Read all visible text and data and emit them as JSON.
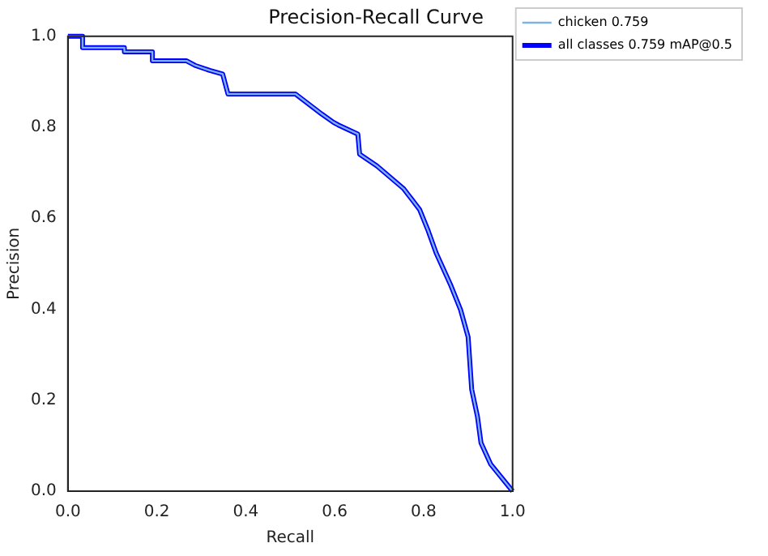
{
  "chart_data": {
    "type": "line",
    "title": "Precision-Recall Curve",
    "xlabel": "Recall",
    "ylabel": "Precision",
    "xlim": [
      0,
      1
    ],
    "ylim": [
      0,
      1
    ],
    "xticks": [
      {
        "value": 0,
        "label": "0.0"
      },
      {
        "value": 0.2,
        "label": "0.2"
      },
      {
        "value": 0.4,
        "label": "0.4"
      },
      {
        "value": 0.6,
        "label": "0.6"
      },
      {
        "value": 0.8,
        "label": "0.8"
      },
      {
        "value": 1,
        "label": "1.0"
      }
    ],
    "yticks": [
      {
        "value": 0,
        "label": "0.0"
      },
      {
        "value": 0.2,
        "label": "0.2"
      },
      {
        "value": 0.4,
        "label": "0.4"
      },
      {
        "value": 0.6,
        "label": "0.6"
      },
      {
        "value": 0.8,
        "label": "0.8"
      },
      {
        "value": 1,
        "label": "1.0"
      }
    ],
    "grid": false,
    "legend": "top right",
    "marker": "none",
    "line_style": "solid",
    "x": [
      0,
      0.033,
      0.033,
      0.127,
      0.127,
      0.19,
      0.19,
      0.267,
      0.286,
      0.319,
      0.348,
      0.36,
      0.512,
      0.571,
      0.597,
      0.608,
      0.652,
      0.656,
      0.695,
      0.755,
      0.791,
      0.81,
      0.828,
      0.86,
      0.883,
      0.9,
      0.908,
      0.921,
      0.929,
      0.951,
      1
    ],
    "series": [
      {
        "name": "chicken 0.759",
        "color": "#7fb2e5",
        "values": [
          1,
          1,
          0.975,
          0.975,
          0.966,
          0.966,
          0.946,
          0.946,
          0.936,
          0.925,
          0.917,
          0.873,
          0.873,
          0.829,
          0.811,
          0.805,
          0.785,
          0.741,
          0.715,
          0.665,
          0.619,
          0.573,
          0.524,
          0.455,
          0.399,
          0.339,
          0.224,
          0.164,
          0.106,
          0.059,
          0
        ]
      },
      {
        "name": "all classes 0.759 mAP@0.5",
        "color": "#0000ff",
        "values": [
          1,
          1,
          0.975,
          0.975,
          0.966,
          0.966,
          0.946,
          0.946,
          0.936,
          0.925,
          0.917,
          0.873,
          0.873,
          0.829,
          0.811,
          0.805,
          0.785,
          0.741,
          0.715,
          0.665,
          0.619,
          0.573,
          0.524,
          0.455,
          0.399,
          0.339,
          0.224,
          0.164,
          0.106,
          0.059,
          0
        ]
      }
    ]
  }
}
